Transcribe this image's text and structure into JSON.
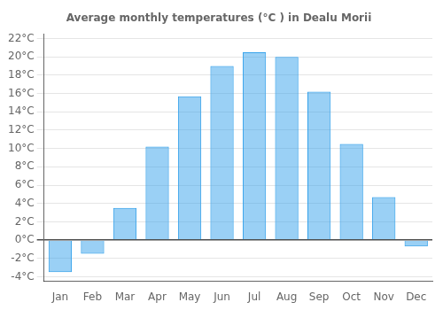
{
  "chart_data": {
    "type": "bar",
    "title": "Average monthly temperatures (°C ) in Dealu Morii",
    "categories": [
      "Jan",
      "Feb",
      "Mar",
      "Apr",
      "May",
      "Jun",
      "Jul",
      "Aug",
      "Sep",
      "Oct",
      "Nov",
      "Dec"
    ],
    "values": [
      -3.5,
      -1.5,
      3.5,
      10.2,
      15.7,
      19.0,
      20.5,
      20.0,
      16.2,
      10.5,
      4.7,
      -0.7
    ],
    "ylim": [
      -4.5,
      22.5
    ],
    "yticks": [
      {
        "value": -4,
        "label": "-4°C"
      },
      {
        "value": -2,
        "label": "-2°C"
      },
      {
        "value": 0,
        "label": "0°C"
      },
      {
        "value": 2,
        "label": "2°C"
      },
      {
        "value": 4,
        "label": "4°C"
      },
      {
        "value": 6,
        "label": "6°C"
      },
      {
        "value": 8,
        "label": "8°C"
      },
      {
        "value": 10,
        "label": "10°C"
      },
      {
        "value": 12,
        "label": "12°C"
      },
      {
        "value": 14,
        "label": "14°C"
      },
      {
        "value": 16,
        "label": "16°C"
      },
      {
        "value": 18,
        "label": "18°C"
      },
      {
        "value": 20,
        "label": "20°C"
      },
      {
        "value": 22,
        "label": "22°C"
      }
    ],
    "grid": true
  }
}
